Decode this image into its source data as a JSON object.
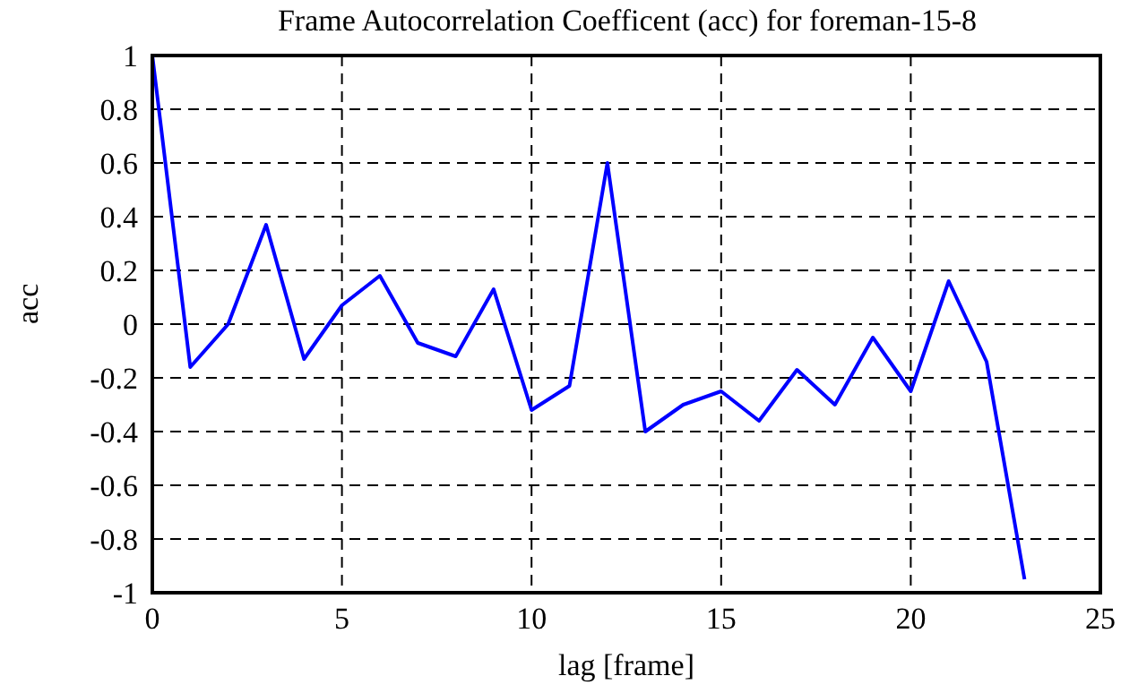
{
  "chart_data": {
    "type": "line",
    "title": "Frame Autocorrelation Coefficent (acc) for foreman-15-8",
    "xlabel": "lag [frame]",
    "ylabel": "acc",
    "x": [
      0,
      1,
      2,
      3,
      4,
      5,
      6,
      7,
      8,
      9,
      10,
      11,
      12,
      13,
      14,
      15,
      16,
      17,
      18,
      19,
      20,
      21,
      22,
      23
    ],
    "series": [
      {
        "color": "#0000ff",
        "values": [
          1,
          -0.16,
          0.0,
          0.37,
          -0.13,
          0.07,
          0.18,
          -0.07,
          -0.12,
          0.13,
          -0.32,
          -0.23,
          0.6,
          -0.4,
          -0.3,
          -0.25,
          -0.36,
          -0.17,
          -0.3,
          -0.05,
          -0.25,
          0.16,
          -0.14,
          -0.95
        ]
      }
    ],
    "xlim": [
      0,
      25
    ],
    "xticks": [
      0,
      5,
      10,
      15,
      20,
      25
    ],
    "ylim": [
      -1,
      1
    ],
    "yticks": [
      -1,
      -0.8,
      -0.6,
      -0.4,
      -0.2,
      0,
      0.2,
      0.4,
      0.6,
      0.8,
      1
    ],
    "grid": true,
    "marker": "none",
    "line_style": "solid"
  }
}
